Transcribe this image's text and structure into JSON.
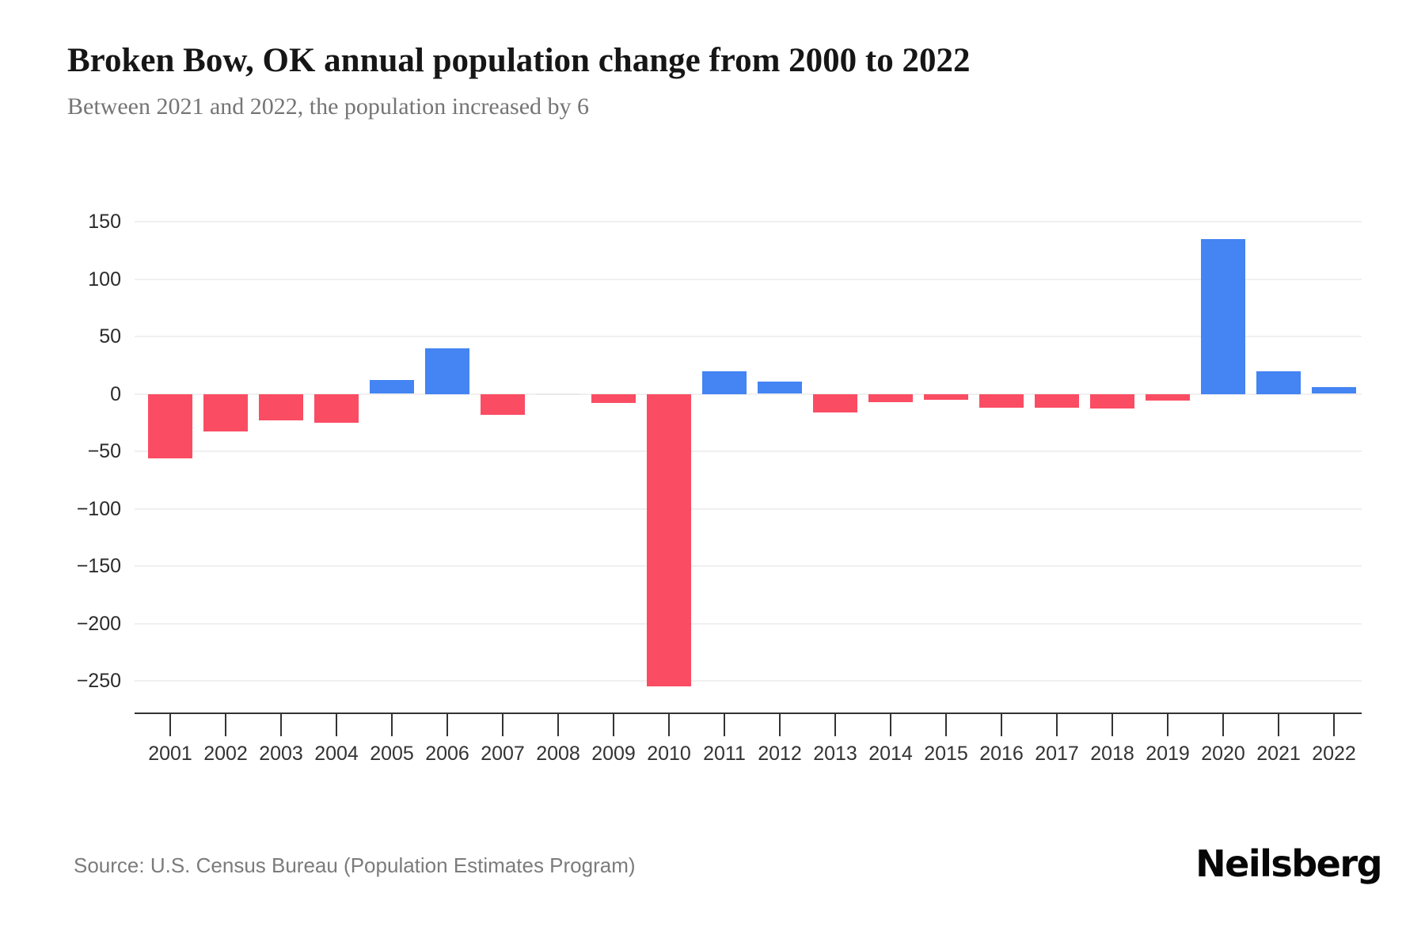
{
  "header": {
    "title": "Broken Bow, OK annual population change from 2000 to 2022",
    "subtitle": "Between 2021 and 2022, the population increased by 6"
  },
  "footer": {
    "source": "Source: U.S. Census Bureau (Population Estimates Program)",
    "brand": "Neilsberg"
  },
  "chart_data": {
    "type": "bar",
    "title": "Broken Bow, OK annual population change from 2000 to 2022",
    "subtitle": "Between 2021 and 2022, the population increased by 6",
    "categories": [
      "2001",
      "2002",
      "2003",
      "2004",
      "2005",
      "2006",
      "2007",
      "2008",
      "2009",
      "2010",
      "2011",
      "2012",
      "2013",
      "2014",
      "2015",
      "2016",
      "2017",
      "2018",
      "2019",
      "2020",
      "2021",
      "2022"
    ],
    "values": [
      -56,
      -33,
      -23,
      -25,
      12,
      40,
      -18,
      0,
      -8,
      -255,
      20,
      11,
      -16,
      -7,
      -5,
      -12,
      -12,
      -13,
      -6,
      135,
      20,
      6
    ],
    "colors": {
      "positive": "#4484F3",
      "negative": "#FA4D63",
      "zero": "#E8E8E8"
    },
    "y_axis": {
      "ticks": [
        150,
        100,
        50,
        0,
        -50,
        -100,
        -150,
        -200,
        -250
      ],
      "tick_labels": [
        "150",
        "100",
        "50",
        "0",
        "−50",
        "−100",
        "−150",
        "−200",
        "−250"
      ]
    },
    "x_axis": {
      "tick_labels": [
        "2001",
        "2002",
        "2003",
        "2004",
        "2005",
        "2006",
        "2007",
        "2008",
        "2009",
        "2010",
        "2011",
        "2012",
        "2013",
        "2014",
        "2015",
        "2016",
        "2017",
        "2018",
        "2019",
        "2020",
        "2021",
        "2022"
      ]
    },
    "grid": true,
    "legend": false,
    "ylim": [
      -278,
      150
    ]
  }
}
